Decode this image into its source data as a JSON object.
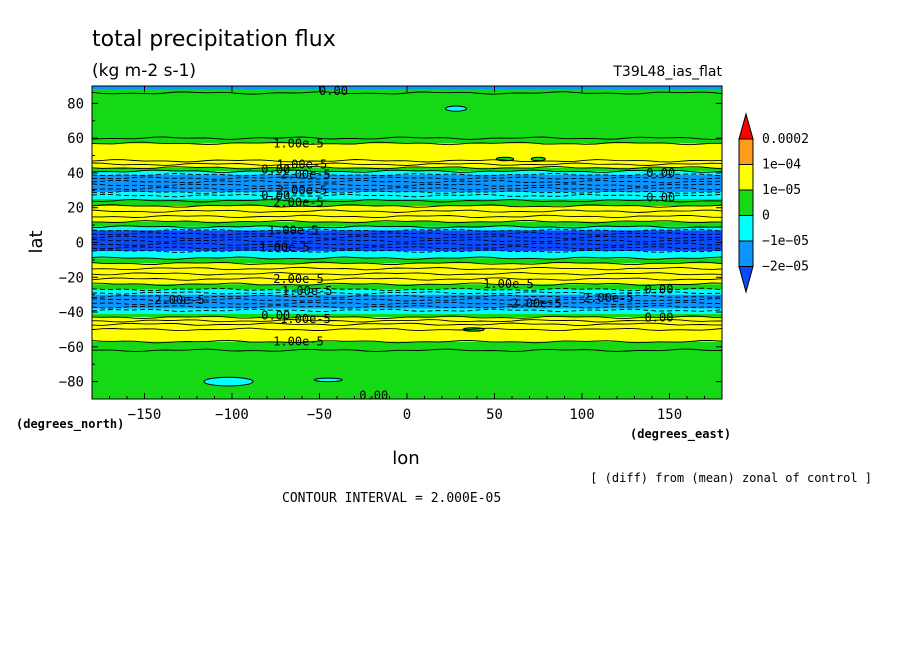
{
  "chart_data": {
    "type": "heatmap",
    "title": "total precipitation flux",
    "units": "(kg m-2 s-1)",
    "run_label": "T39L48_ias_flat",
    "xlabel": "lon",
    "ylabel": "lat",
    "x_units": "(degrees_east)",
    "y_units": "(degrees_north)",
    "xlim": [
      -180,
      180
    ],
    "ylim": [
      -90,
      90
    ],
    "x_ticks": [
      -150,
      -100,
      -50,
      0,
      50,
      100,
      150
    ],
    "y_ticks": [
      -80,
      -60,
      -40,
      -20,
      0,
      20,
      40,
      60,
      80
    ],
    "footnote": "[ (diff) from (mean) zonal of control ]",
    "contour_interval_text": "CONTOUR INTERVAL = 2.000E-05",
    "legend": {
      "placement": "right",
      "labels": [
        "0.0002",
        "1e-04",
        "1e-05",
        "0",
        "-1e-05",
        "-2e-05"
      ],
      "colors": [
        "#ff0000",
        "#ff9a1a",
        "#ffff00",
        "#16d916",
        "#00ffff",
        "#0a94ff",
        "#0a4bff"
      ]
    },
    "bands": [
      {
        "lat_min": 88,
        "lat_max": 90,
        "color": "#0a94ff"
      },
      {
        "lat_min": 47,
        "lat_max": 88,
        "color": "#16d916"
      },
      {
        "lat_min": 43,
        "lat_max": 57,
        "color": "#ffff00"
      },
      {
        "lat_min": 41,
        "lat_max": 43,
        "color": "#16d916"
      },
      {
        "lat_min": 39,
        "lat_max": 41,
        "color": "#00ffff"
      },
      {
        "lat_min": 29,
        "lat_max": 39,
        "color": "#0a94ff"
      },
      {
        "lat_min": 25,
        "lat_max": 29,
        "color": "#00ffff"
      },
      {
        "lat_min": 21,
        "lat_max": 25,
        "color": "#16d916"
      },
      {
        "lat_min": 12,
        "lat_max": 21,
        "color": "#ffff00"
      },
      {
        "lat_min": 9,
        "lat_max": 12,
        "color": "#16d916"
      },
      {
        "lat_min": 7,
        "lat_max": 9,
        "color": "#00ffff"
      },
      {
        "lat_min": -5,
        "lat_max": 7,
        "color": "#0a4bff"
      },
      {
        "lat_min": -9,
        "lat_max": -5,
        "color": "#00ffff"
      },
      {
        "lat_min": -12,
        "lat_max": -9,
        "color": "#16d916"
      },
      {
        "lat_min": -24,
        "lat_max": -12,
        "color": "#ffff00"
      },
      {
        "lat_min": -27,
        "lat_max": -24,
        "color": "#16d916"
      },
      {
        "lat_min": -30,
        "lat_max": -27,
        "color": "#00ffff"
      },
      {
        "lat_min": -38,
        "lat_max": -30,
        "color": "#0a94ff"
      },
      {
        "lat_min": -41,
        "lat_max": -38,
        "color": "#00ffff"
      },
      {
        "lat_min": -43,
        "lat_max": -41,
        "color": "#16d916"
      },
      {
        "lat_min": -57,
        "lat_max": -43,
        "color": "#ffff00"
      },
      {
        "lat_min": -90,
        "lat_max": -57,
        "color": "#16d916"
      }
    ],
    "solid_contour_lats": [
      86,
      60,
      57,
      47,
      45,
      43,
      41,
      24,
      21,
      18,
      15,
      12,
      9,
      -9,
      -12,
      -15,
      -18,
      -21,
      -24,
      -43,
      -45,
      -47,
      -50,
      -57,
      -62
    ],
    "dashed_contour_lats": [
      39,
      37,
      35,
      33,
      31,
      29,
      27,
      7,
      5,
      3,
      1,
      -1,
      -3,
      -5,
      -27,
      -29,
      -31,
      -33,
      -35,
      -37,
      -39
    ],
    "blobs": [
      {
        "lon": 28,
        "lat": 77,
        "rx": 6,
        "ry": 1.5,
        "color": "#00ffff"
      },
      {
        "lon": -102,
        "lat": -80,
        "rx": 14,
        "ry": 2.5,
        "color": "#00ffff"
      },
      {
        "lon": -45,
        "lat": -79,
        "rx": 8,
        "ry": 1,
        "color": "#00ffff"
      },
      {
        "lon": 56,
        "lat": 48,
        "rx": 5,
        "ry": 1,
        "color": "#16d916"
      },
      {
        "lon": 75,
        "lat": 48,
        "rx": 4,
        "ry": 1,
        "color": "#16d916"
      },
      {
        "lon": 38,
        "lat": -50,
        "rx": 6,
        "ry": 1,
        "color": "#16d916"
      }
    ],
    "contour_labels": [
      {
        "text": "0.00",
        "lon": -42,
        "lat": 87
      },
      {
        "text": "1.00e-5",
        "lon": -62,
        "lat": 57
      },
      {
        "text": "1.00e-5",
        "lon": -60,
        "lat": 45
      },
      {
        "text": "0.00",
        "lon": -75,
        "lat": 42
      },
      {
        "text": "2.00e-5",
        "lon": -58,
        "lat": 39
      },
      {
        "text": "2.00e-5",
        "lon": -60,
        "lat": 30
      },
      {
        "text": "0.00",
        "lon": -75,
        "lat": 27
      },
      {
        "text": "2.00e-5",
        "lon": -62,
        "lat": 23
      },
      {
        "text": "0.00",
        "lon": 145,
        "lat": 40
      },
      {
        "text": "0.00",
        "lon": 145,
        "lat": 26
      },
      {
        "text": "1.00e-5",
        "lon": -65,
        "lat": 7
      },
      {
        "text": "1.00e-5",
        "lon": -70,
        "lat": -3
      },
      {
        "text": "2.00e-5",
        "lon": -62,
        "lat": -21
      },
      {
        "text": "1.00e-5",
        "lon": -57,
        "lat": -28
      },
      {
        "text": "2.00e-5",
        "lon": -130,
        "lat": -33
      },
      {
        "text": "1.00e-5",
        "lon": 58,
        "lat": -24
      },
      {
        "text": "2.00e-5",
        "lon": 74,
        "lat": -35
      },
      {
        "text": "2.00e-5",
        "lon": 115,
        "lat": -32
      },
      {
        "text": "0.00",
        "lon": 144,
        "lat": -27
      },
      {
        "text": "0.00",
        "lon": 144,
        "lat": -43
      },
      {
        "text": "0.00",
        "lon": -75,
        "lat": -42
      },
      {
        "text": "1.00e-5",
        "lon": -58,
        "lat": -44
      },
      {
        "text": "1.00e-5",
        "lon": -62,
        "lat": -57
      },
      {
        "text": "0.00",
        "lon": -19,
        "lat": -88
      }
    ]
  }
}
